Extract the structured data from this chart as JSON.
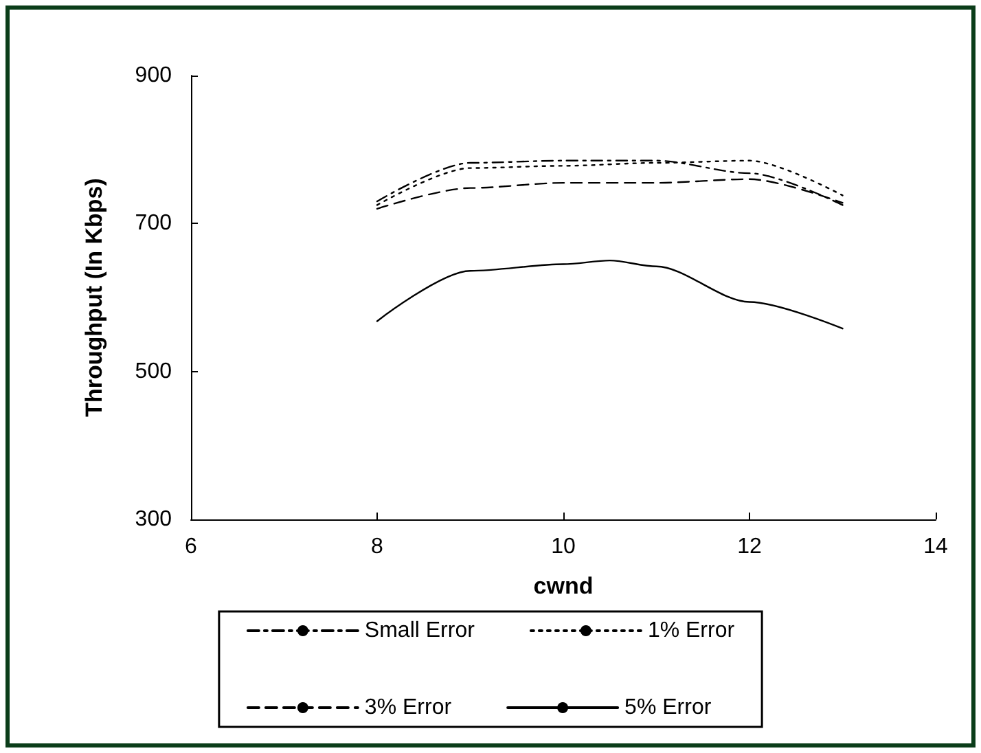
{
  "chart_data": {
    "type": "line",
    "xlabel": "cwnd",
    "ylabel": "Throughput (In Kbps)",
    "xlim": [
      6,
      14
    ],
    "xticks": [
      6,
      8,
      10,
      12,
      14
    ],
    "ylim": [
      300,
      900
    ],
    "yticks": [
      300,
      500,
      700,
      900
    ],
    "grid": false,
    "legend": "bottom",
    "marker": "none",
    "series": [
      {
        "name": "Small Error",
        "color": "#000000",
        "line_style": "dashdot",
        "x": [
          8,
          9,
          10,
          11,
          12,
          13
        ],
        "values": [
          730,
          782,
          785,
          785,
          768,
          725
        ]
      },
      {
        "name": "1% Error",
        "color": "#000000",
        "line_style": "dotted",
        "x": [
          8,
          9,
          10,
          11,
          12,
          13
        ],
        "values": [
          725,
          775,
          778,
          782,
          785,
          738
        ]
      },
      {
        "name": "3% Error",
        "color": "#000000",
        "line_style": "dashed",
        "x": [
          8,
          9,
          10,
          11,
          12,
          13
        ],
        "values": [
          720,
          748,
          755,
          755,
          760,
          728
        ]
      },
      {
        "name": "5% Error",
        "color": "#000000",
        "line_style": "solid",
        "x": [
          8,
          9,
          10,
          10.5,
          11,
          12,
          13
        ],
        "values": [
          568,
          636,
          645,
          650,
          642,
          594,
          558
        ]
      }
    ]
  }
}
